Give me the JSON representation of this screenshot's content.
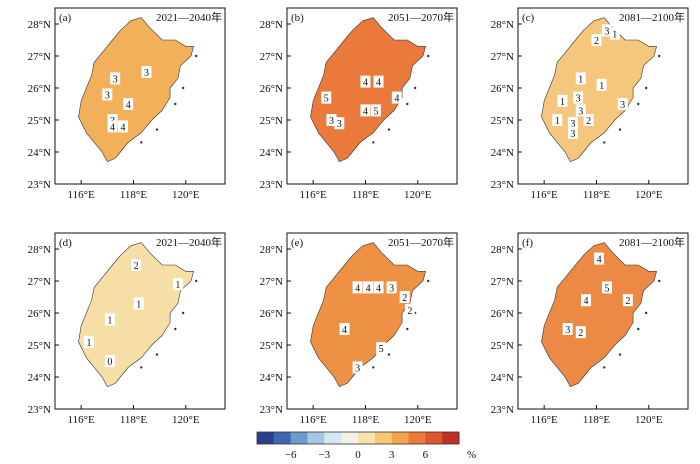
{
  "chart_data": {
    "type": "heatmap",
    "panels": [
      {
        "label": "(a)",
        "period": "2021—2040年",
        "fill": "#f3b05a",
        "numbers": [
          "3",
          "3",
          "3",
          "4",
          "3",
          "4",
          "4"
        ]
      },
      {
        "label": "(b)",
        "period": "2051—2070年",
        "fill": "#ea7a3c",
        "numbers": [
          "4",
          "4",
          "5",
          "4",
          "3",
          "3",
          "4",
          "5"
        ]
      },
      {
        "label": "(c)",
        "period": "2081—2100年",
        "fill": "#f4c77c",
        "numbers": [
          "3",
          "2",
          "1",
          "1",
          "1",
          "1",
          "3",
          "3",
          "2",
          "3",
          "1",
          "3",
          "3"
        ]
      },
      {
        "label": "(d)",
        "period": "2021—2040年",
        "fill": "#f6dfa7",
        "numbers": [
          "2",
          "1",
          "1",
          "1",
          "1",
          "0"
        ]
      },
      {
        "label": "(e)",
        "period": "2051—2070年",
        "fill": "#ee9144",
        "numbers": [
          "4",
          "4",
          "4",
          "3",
          "2",
          "2",
          "4",
          "5",
          "3"
        ]
      },
      {
        "label": "(f)",
        "period": "2081—2100年",
        "fill": "#ec8a45",
        "numbers": [
          "4",
          "5",
          "4",
          "2",
          "3",
          "2"
        ]
      }
    ],
    "x_ticks": [
      "116°E",
      "118°E",
      "120°E"
    ],
    "y_ticks": [
      "28°N",
      "27°N",
      "26°N",
      "25°N",
      "24°N",
      "23°N"
    ],
    "xlim": [
      115,
      121.5
    ],
    "ylim": [
      23,
      28.5
    ],
    "colorbar": {
      "ticks": [
        "−6",
        "−3",
        "0",
        "3",
        "6"
      ],
      "unit": "%",
      "colors": [
        "#2b3f8f",
        "#3f66b0",
        "#6f9bcc",
        "#a3c8e3",
        "#d3e8f1",
        "#f4f1e6",
        "#f8e3ac",
        "#f6c873",
        "#f2a451",
        "#ec7b38",
        "#df5530",
        "#c22f28"
      ]
    }
  }
}
